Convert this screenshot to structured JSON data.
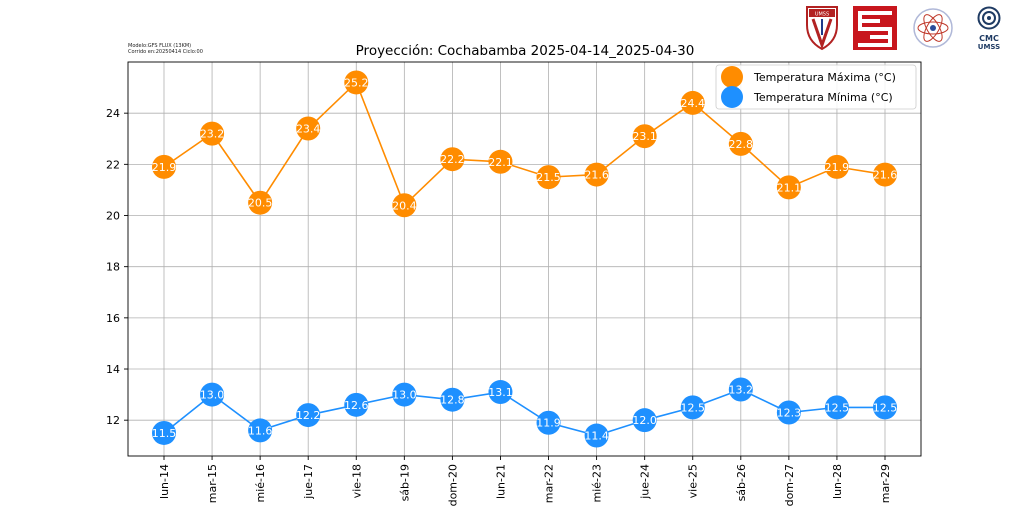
{
  "meta": {
    "model": "Modelo:GFS FLUX (13KM)",
    "run": "Corrido en:20250414 Ciclo:00"
  },
  "logos": {
    "cmc_line1": "CMC",
    "cmc_line2": "UMSS",
    "umss_shield": "UMSS"
  },
  "chart_data": {
    "type": "line",
    "title": "Proyección: Cochabamba 2025-04-14_2025-04-30",
    "xlabel": "",
    "ylabel": "",
    "categories": [
      "lun-14",
      "mar-15",
      "mié-16",
      "jue-17",
      "vie-18",
      "sáb-19",
      "dom-20",
      "lun-21",
      "mar-22",
      "mié-23",
      "jue-24",
      "vie-25",
      "sáb-26",
      "dom-27",
      "lun-28",
      "mar-29"
    ],
    "ylim": [
      10.6,
      26.0
    ],
    "yticks": [
      12,
      14,
      16,
      18,
      20,
      22,
      24
    ],
    "grid": true,
    "legend_position": "top-right",
    "series": [
      {
        "name": "Temperatura Máxima  (°C)",
        "color": "#ff8c00",
        "values": [
          21.9,
          23.2,
          20.5,
          23.4,
          25.2,
          20.4,
          22.2,
          22.1,
          21.5,
          21.6,
          23.1,
          24.4,
          22.8,
          21.1,
          21.9,
          21.6
        ]
      },
      {
        "name": "Temperatura Mínima  (°C)",
        "color": "#1e90ff",
        "values": [
          11.5,
          13.0,
          11.6,
          12.2,
          12.6,
          13.0,
          12.8,
          13.1,
          11.9,
          11.4,
          12.0,
          12.5,
          13.2,
          12.3,
          12.5,
          12.5
        ]
      }
    ]
  }
}
